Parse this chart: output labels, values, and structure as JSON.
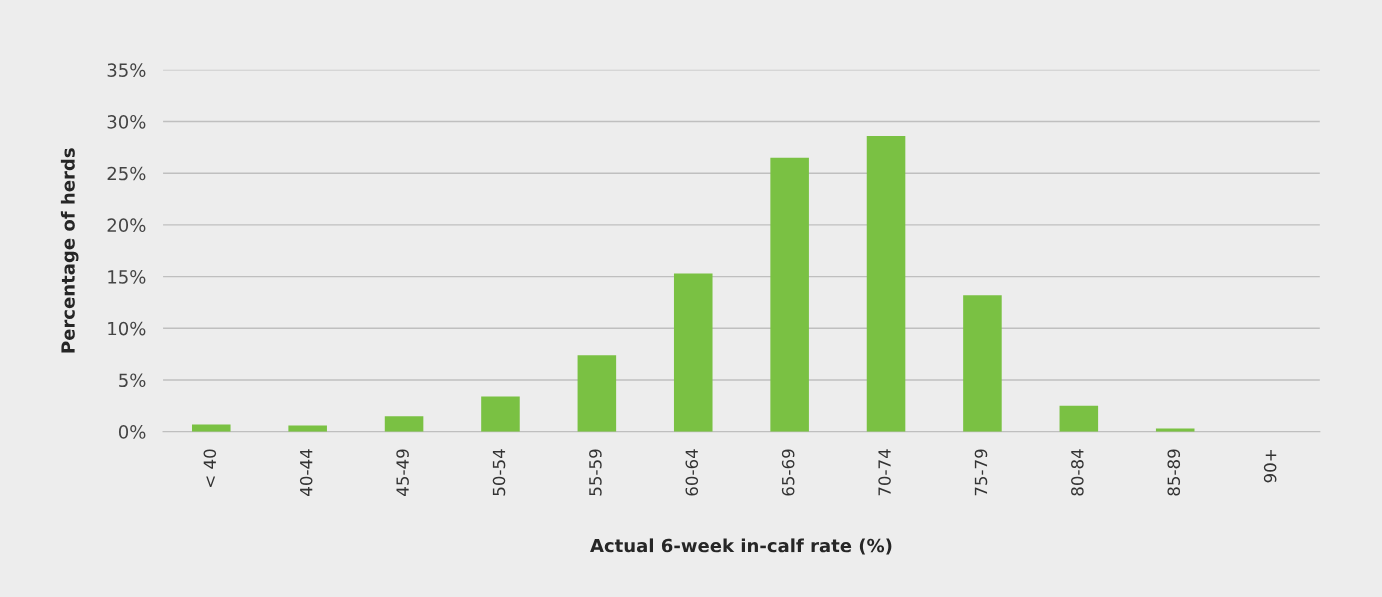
{
  "chart_data": {
    "type": "bar",
    "xlabel": "Actual 6-week in-calf rate (%)",
    "ylabel": "Percentage of herds",
    "categories": [
      "< 40",
      "40-44",
      "45-49",
      "50-54",
      "55-59",
      "60-64",
      "65-69",
      "70-74",
      "75-79",
      "80-84",
      "85-89",
      "90+"
    ],
    "values": [
      0.7,
      0.6,
      1.5,
      3.4,
      7.4,
      15.3,
      26.5,
      28.6,
      13.2,
      2.5,
      0.3,
      0
    ],
    "color": "#7ac143",
    "ylim": [
      0,
      35
    ],
    "yticks": [
      {
        "value": 0,
        "label": "0%"
      },
      {
        "value": 5,
        "label": "5%"
      },
      {
        "value": 10,
        "label": "10%"
      },
      {
        "value": 15,
        "label": "15%"
      },
      {
        "value": 20,
        "label": "20%"
      },
      {
        "value": 25,
        "label": "25%"
      },
      {
        "value": 30,
        "label": "30%"
      },
      {
        "value": 35,
        "label": "35%"
      }
    ],
    "grid": "y",
    "legend": false
  }
}
